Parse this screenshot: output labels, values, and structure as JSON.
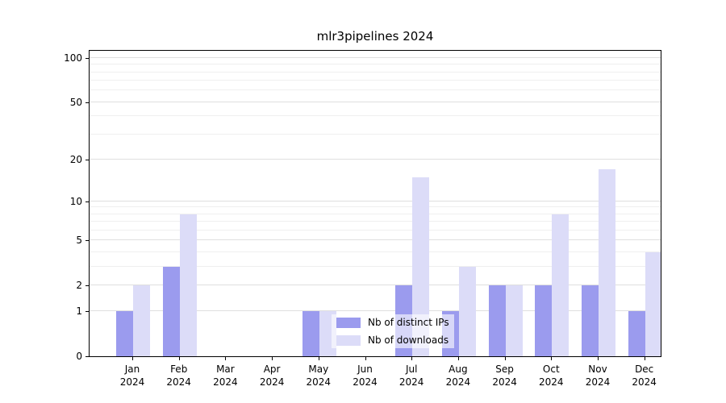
{
  "chart_data": {
    "type": "bar",
    "title": "mlr3pipelines 2024",
    "xlabel": "",
    "ylabel": "",
    "year": "2024",
    "categories": [
      "Jan",
      "Feb",
      "Mar",
      "Apr",
      "May",
      "Jun",
      "Jul",
      "Aug",
      "Sep",
      "Oct",
      "Nov",
      "Dec"
    ],
    "series": [
      {
        "name": "Nb of distinct IPs",
        "color": "#9b9bee",
        "values": [
          1,
          3,
          0,
          0,
          1,
          0,
          2,
          1,
          2,
          2,
          2,
          1
        ]
      },
      {
        "name": "Nb of downloads",
        "color": "#dcdcf8",
        "values": [
          2,
          8,
          0,
          0,
          1,
          0,
          15,
          3,
          2,
          8,
          17,
          4
        ]
      }
    ],
    "y_ticks": [
      0,
      1,
      2,
      5,
      10,
      20,
      50,
      100
    ],
    "y_minor_ticks": [
      3,
      4,
      6,
      7,
      8,
      9,
      30,
      40,
      60,
      70,
      80,
      90
    ],
    "y_scale": "log1p",
    "y_top": 112,
    "grid": true,
    "legend_position": "lower center"
  }
}
